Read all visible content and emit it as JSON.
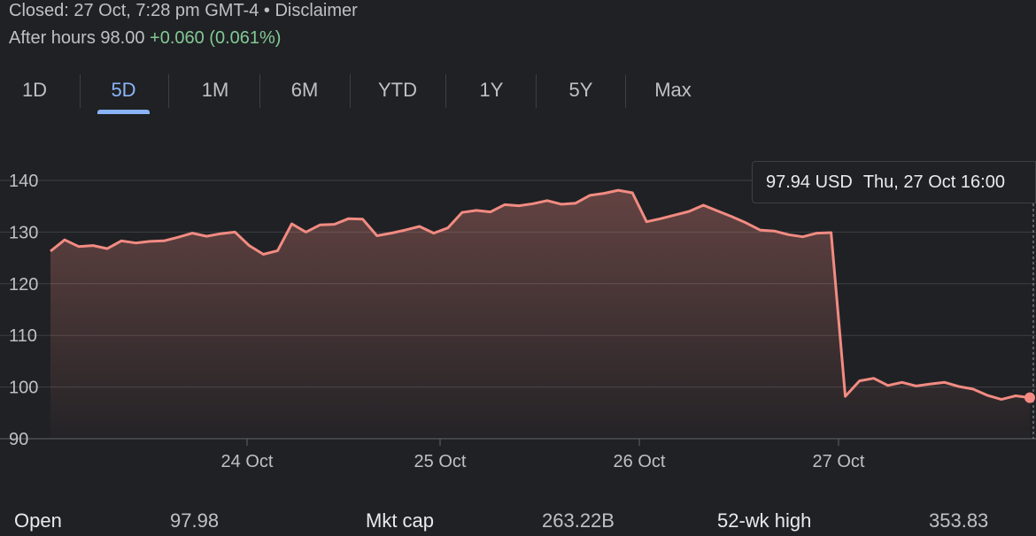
{
  "header": {
    "status_text": "Closed: 27 Oct, 7:28 pm GMT-4 • Disclaimer",
    "after_hours_label": "After hours",
    "after_hours_price": "98.00",
    "after_hours_change": "+0.060 (0.061%)"
  },
  "range_tabs": [
    "1D",
    "5D",
    "1M",
    "6M",
    "YTD",
    "1Y",
    "5Y",
    "Max"
  ],
  "active_tab": "5D",
  "tooltip": {
    "price": "97.94 USD",
    "datetime": "Thu, 27 Oct 16:00"
  },
  "colors": {
    "line": "#f28b82",
    "positive": "#81c995",
    "accent": "#8ab4f8",
    "background": "#202124"
  },
  "chart_data": {
    "type": "area",
    "title": "",
    "xlabel": "",
    "ylabel": "",
    "ylim": [
      90,
      140
    ],
    "yticks": [
      90,
      100,
      110,
      120,
      130,
      140
    ],
    "xtick_labels": [
      "24 Oct",
      "25 Oct",
      "26 Oct",
      "27 Oct"
    ],
    "grid": true,
    "series": [
      {
        "values": [
          126.3,
          128.5,
          127.2,
          127.4,
          126.8,
          128.3,
          127.9,
          128.2,
          128.3,
          129.0,
          129.8,
          129.2,
          129.7,
          130.0,
          127.4,
          125.7,
          126.4,
          131.6,
          130.0,
          131.4,
          131.5,
          132.6,
          132.5,
          129.3,
          129.8,
          130.4,
          131.1,
          129.8,
          130.8,
          133.8,
          134.2,
          133.9,
          135.3,
          135.1,
          135.5,
          136.1,
          135.4,
          135.6,
          137.1,
          137.5,
          138.1,
          137.6,
          132.0,
          132.6,
          133.3,
          134.0,
          135.2,
          134.1,
          133.0,
          131.8,
          130.4,
          130.2,
          129.5,
          129.1,
          129.8,
          129.9,
          98.2,
          101.2,
          101.7,
          100.3,
          100.9,
          100.2,
          100.6,
          100.9,
          100.1,
          99.6,
          98.4,
          97.6,
          98.3,
          97.94
        ]
      }
    ]
  },
  "stats": [
    {
      "label": "Open",
      "value": "97.98"
    },
    {
      "label": "Mkt cap",
      "value": "263.22B"
    },
    {
      "label": "52-wk high",
      "value": "353.83"
    }
  ]
}
